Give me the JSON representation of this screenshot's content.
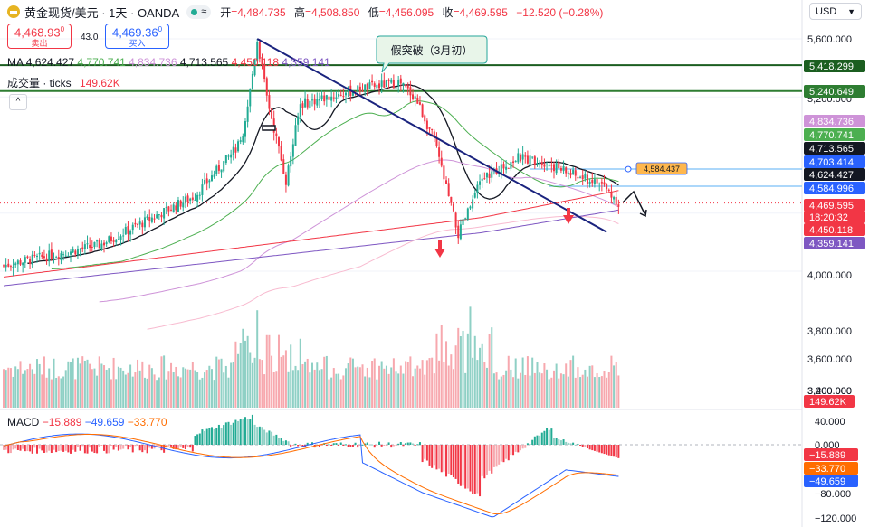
{
  "header": {
    "title": "黄金现货/美元 · 1天 · OANDA",
    "status_symbol": "≈",
    "ohlc": [
      {
        "k": "开",
        "v": "=4,484.735"
      },
      {
        "k": "高",
        "v": "=4,508.850"
      },
      {
        "k": "低",
        "v": "=4,456.095"
      },
      {
        "k": "收",
        "v": "=4,469.595"
      }
    ],
    "change": "−12.520 (−0.28%)"
  },
  "quote": {
    "sell_price": "4,468.93",
    "sell_sup": "0",
    "sell_label": "卖出",
    "spread": "43.0",
    "buy_price": "4,469.36",
    "buy_sup": "0",
    "buy_label": "买入"
  },
  "legends": {
    "ma_label": "MA",
    "ma_values": [
      {
        "v": "4,624.427",
        "color": "#131722"
      },
      {
        "v": "4,770.741",
        "color": "#4caf50"
      },
      {
        "v": "4,834.736",
        "color": "#ce93d8"
      },
      {
        "v": "4,713.565",
        "color": "#131722"
      },
      {
        "v": "4,450.118",
        "color": "#f23645"
      },
      {
        "v": "4,359.141",
        "color": "#7e57c2"
      }
    ],
    "volume_label": "成交量 · ticks",
    "volume_value": "149.62K",
    "collapse_icon": "^",
    "macd_label": "MACD",
    "macd_values": [
      {
        "v": "−15.889",
        "color": "#f23645"
      },
      {
        "v": "−49.659",
        "color": "#2962ff"
      },
      {
        "v": "−33.770",
        "color": "#ff6d00"
      }
    ]
  },
  "currency": "USD",
  "annotation": "假突破（3月初）",
  "mid_marker_label": "4,584.437",
  "chart_data": {
    "type": "candlestick",
    "price_axis_ticks": [
      "5,600.000",
      "5,200.000",
      "4,000.000",
      "3,800.000",
      "3,600.000",
      "3,400.000",
      "3,200.000"
    ],
    "macd_axis_ticks": [
      "40.000",
      "0.000",
      "−80.000",
      "−120.000"
    ],
    "price_tags": [
      {
        "v": "5,418.299",
        "bg": "#1b5e20",
        "price": 5418.3
      },
      {
        "v": "5,240.649",
        "bg": "#2e7d32",
        "price": 5240.6
      },
      {
        "v": "4,834.736",
        "bg": "#ce93d8",
        "price": 4834.7
      },
      {
        "v": "4,770.741",
        "bg": "#4caf50",
        "price": 4770.7
      },
      {
        "v": "4,713.565",
        "bg": "#131722",
        "price": 4713.6
      },
      {
        "v": "4,703.414",
        "bg": "#2962ff",
        "price": 4703.4
      },
      {
        "v": "4,624.427",
        "bg": "#131722",
        "price": 4624.4
      },
      {
        "v": "4,584.996",
        "bg": "#2962ff",
        "price": 4585.0
      },
      {
        "v": "4,469.595",
        "bg": "#f23645",
        "price": 4469.6
      },
      {
        "v": "18:20:32",
        "bg": "#f23645",
        "price": 4415
      },
      {
        "v": "4,450.118",
        "bg": "#f23645",
        "price": 4375
      },
      {
        "v": "4,359.141",
        "bg": "#7e57c2",
        "price": 4335
      }
    ],
    "volume_tag": "149.62K",
    "macd_tags": [
      {
        "v": "−15.889",
        "bg": "#f23645",
        "val": -15.9
      },
      {
        "v": "−33.770",
        "bg": "#ff6d00",
        "val": -33.8
      },
      {
        "v": "−49.659",
        "bg": "#2962ff",
        "val": -49.7
      }
    ],
    "horizontal_levels": [
      {
        "price": 5418.3,
        "color": "#1b5e20"
      },
      {
        "price": 5240.6,
        "color": "#2e7d32"
      }
    ],
    "trendline": {
      "from": {
        "i": 106,
        "price": 5600
      },
      "to": {
        "i": 252,
        "price": 4270
      }
    }
  }
}
